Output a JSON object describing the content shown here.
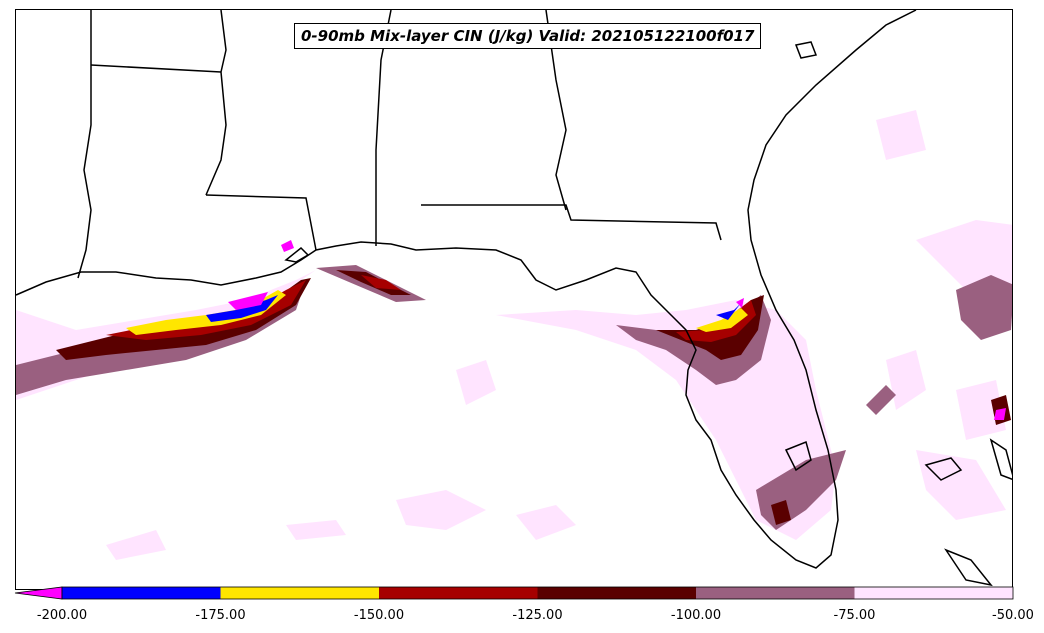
{
  "title": "0-90mb Mix-layer CIN (J/kg) Valid: 202105122100f017",
  "colorbar": {
    "extend": "min",
    "extend_color": "#ff00ff",
    "bins": [
      {
        "from": -200,
        "to": -175,
        "color": "#0000ff"
      },
      {
        "from": -175,
        "to": -150,
        "color": "#ffe600"
      },
      {
        "from": -150,
        "to": -125,
        "color": "#a60000"
      },
      {
        "from": -125,
        "to": -100,
        "color": "#5a0000"
      },
      {
        "from": -100,
        "to": -75,
        "color": "#9a6080"
      },
      {
        "from": -75,
        "to": -50,
        "color": "#ffe4ff"
      }
    ],
    "ticks": [
      "-200.00",
      "-175.00",
      "-150.00",
      "-125.00",
      "-100.00",
      "-75.00",
      "-50.00"
    ]
  }
}
